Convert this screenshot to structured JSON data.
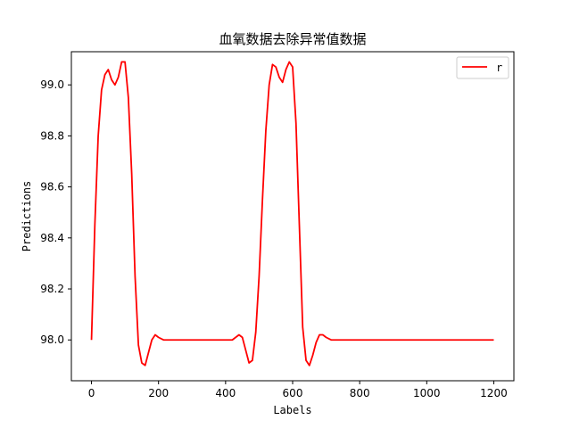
{
  "chart_data": {
    "type": "line",
    "title": "血氧数据去除异常值数据",
    "xlabel": "Labels",
    "ylabel": "Predictions",
    "xlim": [
      -60,
      1260
    ],
    "ylim": [
      97.84,
      99.13
    ],
    "xticks": [
      0,
      200,
      400,
      600,
      800,
      1000,
      1200
    ],
    "xtick_labels": [
      "0",
      "200",
      "400",
      "600",
      "800",
      "1000",
      "1200"
    ],
    "yticks": [
      98.0,
      98.2,
      98.4,
      98.6,
      98.8,
      99.0
    ],
    "ytick_labels": [
      "98.0",
      "98.2",
      "98.4",
      "98.6",
      "98.8",
      "99.0"
    ],
    "grid": false,
    "legend_position": "top-right",
    "series": [
      {
        "name": "r",
        "color": "#ff0000",
        "x": [
          0,
          10,
          20,
          30,
          40,
          50,
          60,
          70,
          80,
          90,
          100,
          110,
          120,
          130,
          140,
          150,
          160,
          170,
          180,
          190,
          200,
          215,
          230,
          250,
          280,
          320,
          360,
          400,
          420,
          430,
          440,
          450,
          460,
          470,
          480,
          490,
          500,
          510,
          520,
          530,
          540,
          550,
          560,
          570,
          580,
          590,
          600,
          610,
          620,
          630,
          640,
          650,
          660,
          670,
          680,
          690,
          700,
          715,
          730,
          750,
          800,
          900,
          1000,
          1100,
          1200
        ],
        "y": [
          98.0,
          98.45,
          98.8,
          98.98,
          99.04,
          99.06,
          99.02,
          99.0,
          99.03,
          99.09,
          99.09,
          98.95,
          98.65,
          98.25,
          97.98,
          97.91,
          97.9,
          97.95,
          98.0,
          98.02,
          98.01,
          98.0,
          98.0,
          98.0,
          98.0,
          98.0,
          98.0,
          98.0,
          98.0,
          98.01,
          98.02,
          98.01,
          97.96,
          97.91,
          97.92,
          98.03,
          98.25,
          98.55,
          98.82,
          99.0,
          99.08,
          99.07,
          99.03,
          99.01,
          99.06,
          99.09,
          99.07,
          98.85,
          98.45,
          98.05,
          97.92,
          97.9,
          97.94,
          97.99,
          98.02,
          98.02,
          98.01,
          98.0,
          98.0,
          98.0,
          98.0,
          98.0,
          98.0,
          98.0,
          98.0
        ]
      }
    ]
  }
}
